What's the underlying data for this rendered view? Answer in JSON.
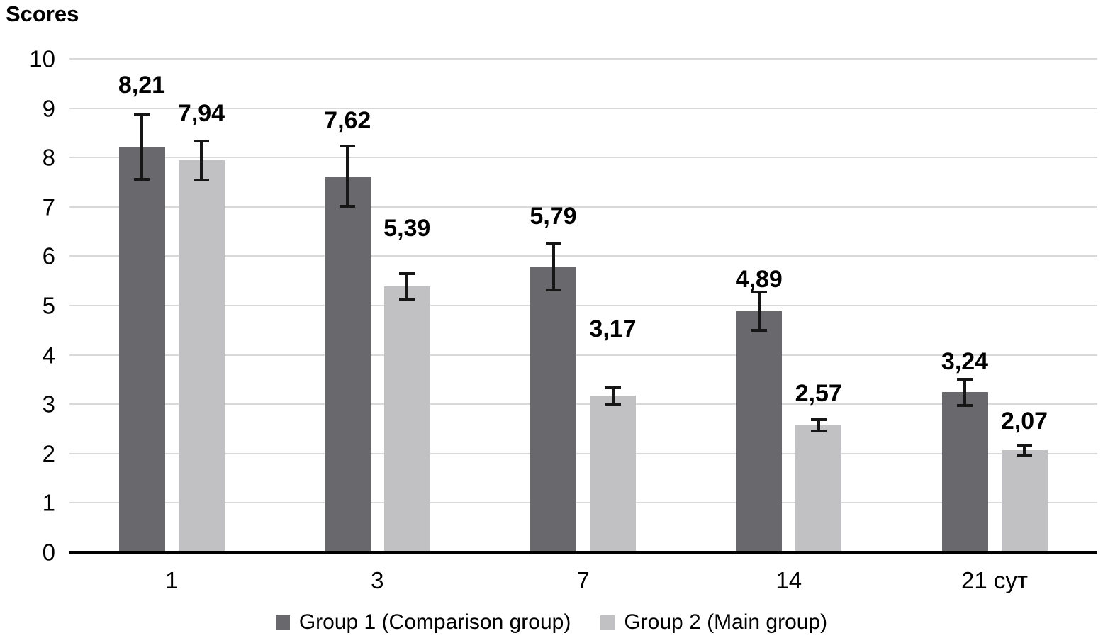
{
  "chart_data": {
    "type": "bar",
    "title": "Scores",
    "xlabel": "",
    "ylabel": "Scores",
    "categories": [
      "1",
      "3",
      "7",
      "14",
      "21 сут"
    ],
    "series": [
      {
        "name": "Group 1 (Comparison group)",
        "color": "#69696d",
        "values": [
          8.21,
          7.62,
          5.79,
          4.89,
          3.24
        ],
        "labels": [
          "8,21",
          "7,62",
          "5,79",
          "4,89",
          "3,24"
        ],
        "errors": [
          0.65,
          0.61,
          0.47,
          0.39,
          0.26
        ]
      },
      {
        "name": "Group 2 (Main group)",
        "color": "#c1c1c3",
        "values": [
          7.94,
          5.39,
          3.17,
          2.57,
          2.07
        ],
        "labels": [
          "7,94",
          "5,39",
          "3,17",
          "2,57",
          "2,07"
        ],
        "errors": [
          0.4,
          0.26,
          0.17,
          0.12,
          0.1
        ]
      }
    ],
    "ylim": [
      0,
      10
    ],
    "yticks": [
      0,
      1,
      2,
      3,
      4,
      5,
      6,
      7,
      8,
      9,
      10
    ],
    "grid": "horizontal",
    "gridline_color": "#d9d9d9",
    "axis_color": "#000000",
    "error_bar_color": "#161616",
    "legend_position": "bottom"
  }
}
